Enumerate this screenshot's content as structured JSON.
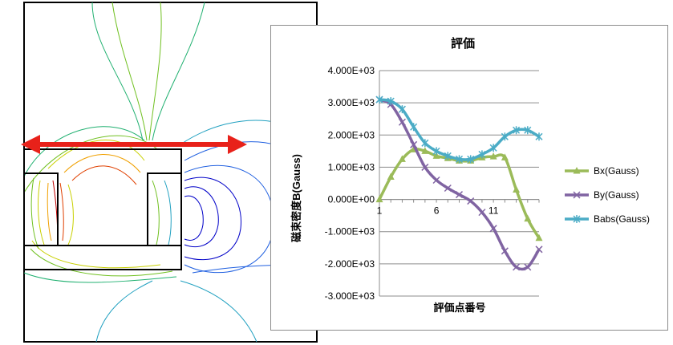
{
  "chart_data": {
    "type": "line",
    "title": "評価",
    "xlabel": "評価点番号",
    "ylabel": "磁束密度B(Gauss)",
    "x": [
      1,
      2,
      3,
      4,
      5,
      6,
      7,
      8,
      9,
      10,
      11,
      12,
      13,
      14,
      15
    ],
    "x_ticks": [
      1,
      6,
      11
    ],
    "ylim": [
      -3000,
      4000
    ],
    "y_ticks": [
      -3000,
      -2000,
      -1000,
      0,
      1000,
      2000,
      3000,
      4000
    ],
    "y_tick_labels": [
      "-3.000E+03",
      "-2.000E+03",
      "-1.000E+03",
      "0.000E+00",
      "1.000E+03",
      "2.000E+03",
      "3.000E+03",
      "4.000E+03"
    ],
    "grid": true,
    "legend_position": "right",
    "series": [
      {
        "name": "Bx(Gauss)",
        "color": "#9bbb59",
        "marker": "triangle",
        "values": [
          0,
          700,
          1250,
          1550,
          1500,
          1350,
          1280,
          1200,
          1200,
          1300,
          1330,
          1300,
          300,
          -600,
          -1200
        ]
      },
      {
        "name": "By(Gauss)",
        "color": "#8064a2",
        "marker": "x",
        "values": [
          3100,
          2950,
          2400,
          1700,
          1000,
          600,
          350,
          150,
          -50,
          -400,
          -900,
          -1600,
          -2100,
          -2100,
          -1550
        ]
      },
      {
        "name": "Babs(Gauss)",
        "color": "#4bacc6",
        "marker": "asterisk",
        "values": [
          3100,
          3050,
          2800,
          2250,
          1750,
          1500,
          1350,
          1250,
          1250,
          1400,
          1600,
          1950,
          2150,
          2150,
          1950
        ]
      }
    ]
  },
  "field_figure": {
    "contour_colors": [
      "#0000c8",
      "#2060e0",
      "#20a0c0",
      "#20b070",
      "#70c020",
      "#c8d000",
      "#f0a000",
      "#e04000",
      "#c00000"
    ],
    "arrow_color": "#e8211a"
  }
}
